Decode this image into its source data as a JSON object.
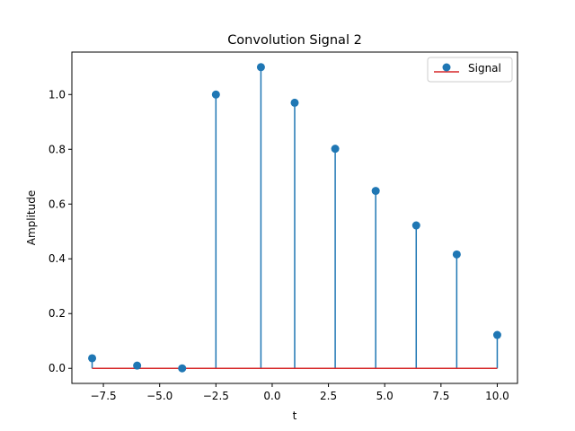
{
  "chart_data": {
    "type": "stem",
    "title": "Convolution Signal 2",
    "xlabel": "t",
    "ylabel": "Amplitude",
    "xlim": [
      -8.9,
      10.9
    ],
    "ylim": [
      -0.055,
      1.155
    ],
    "xticks": [
      -7.5,
      -5.0,
      -2.5,
      0.0,
      2.5,
      5.0,
      7.5,
      10.0
    ],
    "xtick_labels": [
      "−7.5",
      "−5.0",
      "−2.5",
      "0.0",
      "2.5",
      "5.0",
      "7.5",
      "10.0"
    ],
    "yticks": [
      0.0,
      0.2,
      0.4,
      0.6,
      0.8,
      1.0
    ],
    "ytick_labels": [
      "0.0",
      "0.2",
      "0.4",
      "0.6",
      "0.8",
      "1.0"
    ],
    "legend_position": "top-right",
    "series": [
      {
        "name": "Signal",
        "x": [
          -8.0,
          -6.0,
          -4.0,
          -2.5,
          -0.5,
          1.0,
          2.8,
          4.6,
          6.4,
          8.2,
          10.0
        ],
        "y": [
          0.037,
          0.01,
          0.0,
          1.0,
          1.1,
          0.97,
          0.802,
          0.648,
          0.522,
          0.416,
          0.122
        ],
        "marker_color": "#1f77b4",
        "stem_color": "#1f77b4",
        "baseline_color": "#d62728"
      }
    ]
  }
}
